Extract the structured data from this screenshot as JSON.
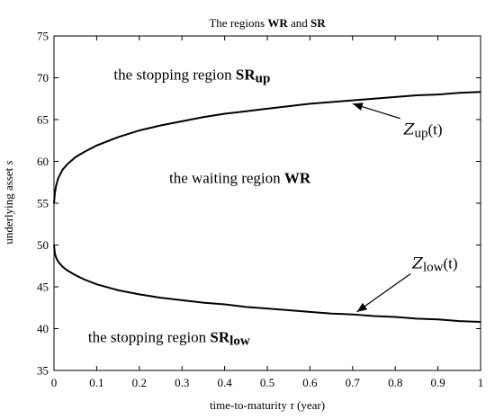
{
  "chart_data": {
    "type": "line",
    "title_parts": [
      "The regions ",
      "WR",
      " and ",
      "SR"
    ],
    "xlabel_parts": [
      "time-to-maturity ",
      "τ",
      " (year)"
    ],
    "ylabel_parts": [
      "underlying asset ",
      "s"
    ],
    "xlim": [
      0,
      1
    ],
    "ylim": [
      35,
      75
    ],
    "xticks": [
      0,
      0.1,
      0.2,
      0.3,
      0.4,
      0.5,
      0.6,
      0.7,
      0.8,
      0.9,
      1
    ],
    "xtick_labels": [
      "0",
      "0.1",
      "0.2",
      "0.3",
      "0.4",
      "0.5",
      "0.6",
      "0.7",
      "0.8",
      "0.9",
      "1"
    ],
    "yticks": [
      35,
      40,
      45,
      50,
      55,
      60,
      65,
      70,
      75
    ],
    "ytick_labels": [
      "35",
      "40",
      "45",
      "50",
      "55",
      "60",
      "65",
      "70",
      "75"
    ],
    "grid": false,
    "series": [
      {
        "x": [
          0,
          0.002,
          0.005,
          0.01,
          0.02,
          0.03,
          0.05,
          0.07,
          0.1,
          0.15,
          0.2,
          0.25,
          0.3,
          0.35,
          0.4,
          0.45,
          0.5,
          0.55,
          0.6,
          0.65,
          0.7,
          0.75,
          0.8,
          0.85,
          0.9,
          0.95,
          1.0
        ],
        "y": [
          55.0,
          56.2,
          57.1,
          58.0,
          59.0,
          59.6,
          60.5,
          61.1,
          61.9,
          62.9,
          63.7,
          64.3,
          64.8,
          65.3,
          65.7,
          66.0,
          66.3,
          66.6,
          66.9,
          67.1,
          67.3,
          67.5,
          67.7,
          67.9,
          68.0,
          68.2,
          68.3
        ]
      },
      {
        "x": [
          0,
          0.002,
          0.005,
          0.01,
          0.02,
          0.03,
          0.05,
          0.07,
          0.1,
          0.15,
          0.2,
          0.25,
          0.3,
          0.35,
          0.4,
          0.45,
          0.5,
          0.55,
          0.6,
          0.65,
          0.7,
          0.75,
          0.8,
          0.85,
          0.9,
          0.95,
          1.0
        ],
        "y": [
          50.0,
          49.0,
          48.5,
          48.0,
          47.4,
          47.0,
          46.4,
          45.9,
          45.3,
          44.6,
          44.1,
          43.7,
          43.4,
          43.1,
          42.9,
          42.6,
          42.4,
          42.2,
          42.0,
          41.8,
          41.7,
          41.5,
          41.4,
          41.2,
          41.1,
          40.9,
          40.8
        ]
      }
    ],
    "annotations": [
      {
        "text_base": "Z",
        "text_sub": "up",
        "text_tail": "(t)",
        "label_at": [
          0.82,
          63.2
        ],
        "arrow_to": [
          0.7,
          66.9
        ]
      },
      {
        "text_base": "Z",
        "text_sub": "low",
        "text_tail": "(t)",
        "label_at": [
          0.84,
          47.2
        ],
        "arrow_to": [
          0.71,
          42.0
        ]
      }
    ],
    "region_labels": [
      {
        "text": "the stopping region ",
        "bold": "SR",
        "sub": "up",
        "at": [
          0.14,
          69.8
        ]
      },
      {
        "text": "the waiting region ",
        "bold": "WR",
        "sub": "",
        "at": [
          0.27,
          57.4
        ]
      },
      {
        "text": "the stopping region ",
        "bold": "SR",
        "sub": "low",
        "at": [
          0.08,
          38.4
        ]
      }
    ]
  }
}
